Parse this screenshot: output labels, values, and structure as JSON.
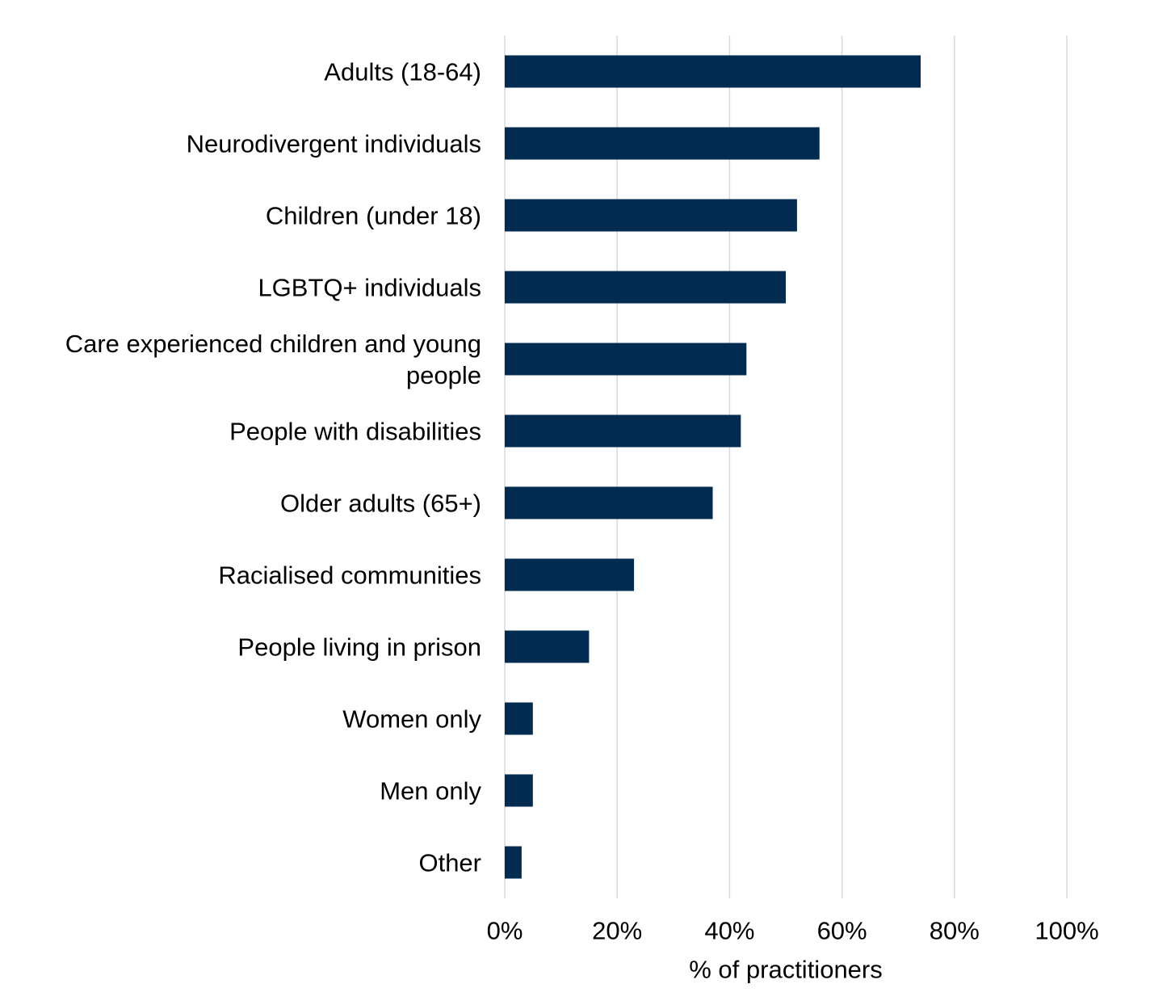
{
  "chart_data": {
    "type": "bar",
    "orientation": "horizontal",
    "categories": [
      "Adults (18-64)",
      "Neurodivergent individuals",
      "Children (under 18)",
      "LGBTQ+ individuals",
      "Care experienced children and young people",
      "People with disabilities",
      "Older adults (65+)",
      "Racialised communities",
      "People living in prison",
      "Women only",
      "Men only",
      "Other"
    ],
    "values": [
      74,
      56,
      52,
      50,
      43,
      42,
      37,
      23,
      15,
      5,
      5,
      3
    ],
    "color": "#022b52",
    "xlabel": "% of practitioners",
    "xlim": [
      0,
      100
    ],
    "xticks": [
      {
        "value": 0,
        "label": "0%"
      },
      {
        "value": 20,
        "label": "20%"
      },
      {
        "value": 40,
        "label": "40%"
      },
      {
        "value": 60,
        "label": "60%"
      },
      {
        "value": 80,
        "label": "80%"
      },
      {
        "value": 100,
        "label": "100%"
      }
    ],
    "grid": true
  }
}
